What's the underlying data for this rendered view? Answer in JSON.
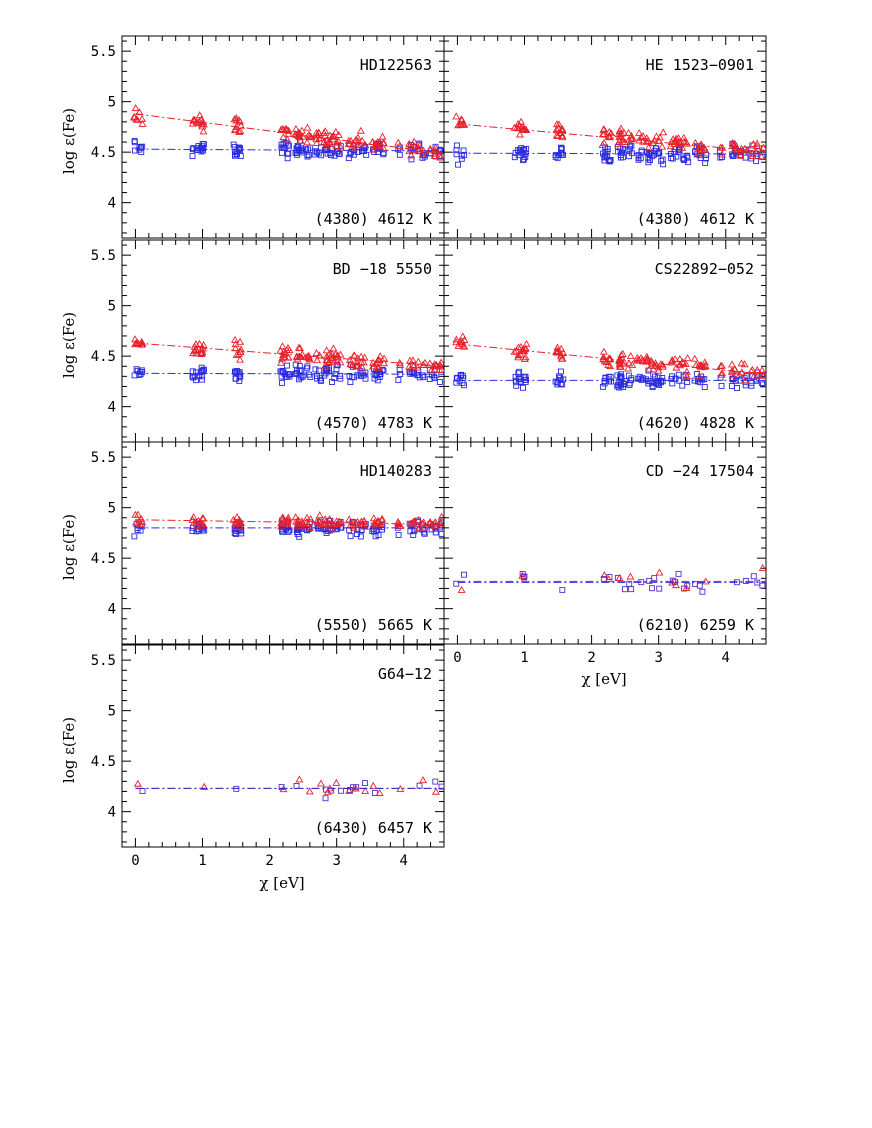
{
  "figure": {
    "xlabel": "χ [eV]",
    "ylabel": "log ε(Fe)"
  },
  "chart_data": {
    "type": "scatter",
    "xlabel": "χ [eV]",
    "ylabel": "log ε(Fe)",
    "xlim": [
      -0.2,
      4.6
    ],
    "ylim": [
      3.65,
      5.65
    ],
    "xticks": [
      0,
      1,
      2,
      3,
      4
    ],
    "yticks": [
      4,
      4.5,
      5,
      5.5
    ],
    "ytick_labels": [
      "4",
      "4.5",
      "5",
      "5.5"
    ],
    "series_legend": [
      {
        "name": "red triangles (upper, trend line)",
        "marker": "triangle",
        "color": "#e8202a"
      },
      {
        "name": "blue squares (lower, trend line)",
        "marker": "square",
        "color": "#2a2ae0"
      }
    ],
    "panels": [
      {
        "star": "HD122563",
        "teff": "(4380) 4612 K",
        "red_fit": [
          4.88,
          -0.085
        ],
        "blue_fit": [
          4.53,
          -0.004
        ],
        "red_spread": 0.08,
        "blue_spread": 0.08
      },
      {
        "star": "HE 1523−0901",
        "teff": "(4380) 4612 K",
        "red_fit": [
          4.78,
          -0.06
        ],
        "blue_fit": [
          4.49,
          -0.002
        ],
        "red_spread": 0.08,
        "blue_spread": 0.09
      },
      {
        "star": "BD −18 5550",
        "teff": "(4570) 4783 K",
        "red_fit": [
          4.63,
          -0.05
        ],
        "blue_fit": [
          4.33,
          -0.002
        ],
        "red_spread": 0.07,
        "blue_spread": 0.08
      },
      {
        "star": "CS22892−052",
        "teff": "(4620) 4828 K",
        "red_fit": [
          4.62,
          -0.065
        ],
        "blue_fit": [
          4.26,
          0.0
        ],
        "red_spread": 0.08,
        "blue_spread": 0.08
      },
      {
        "star": "HD140283",
        "teff": "(5550) 5665 K",
        "red_fit": [
          4.88,
          -0.01
        ],
        "blue_fit": [
          4.8,
          0.0
        ],
        "red_spread": 0.06,
        "blue_spread": 0.07
      },
      {
        "star": "CD −24 17504",
        "teff": "(6210) 6259 K",
        "red_fit": [
          4.27,
          0.0
        ],
        "blue_fit": [
          4.26,
          0.0
        ],
        "red_spread": 0.1,
        "blue_spread": 0.1
      },
      {
        "star": "G64−12",
        "teff": "(6430) 6457 K",
        "red_fit": [
          4.23,
          0.0
        ],
        "blue_fit": [
          4.23,
          0.0
        ],
        "red_spread": 0.09,
        "blue_spread": 0.09
      }
    ]
  }
}
